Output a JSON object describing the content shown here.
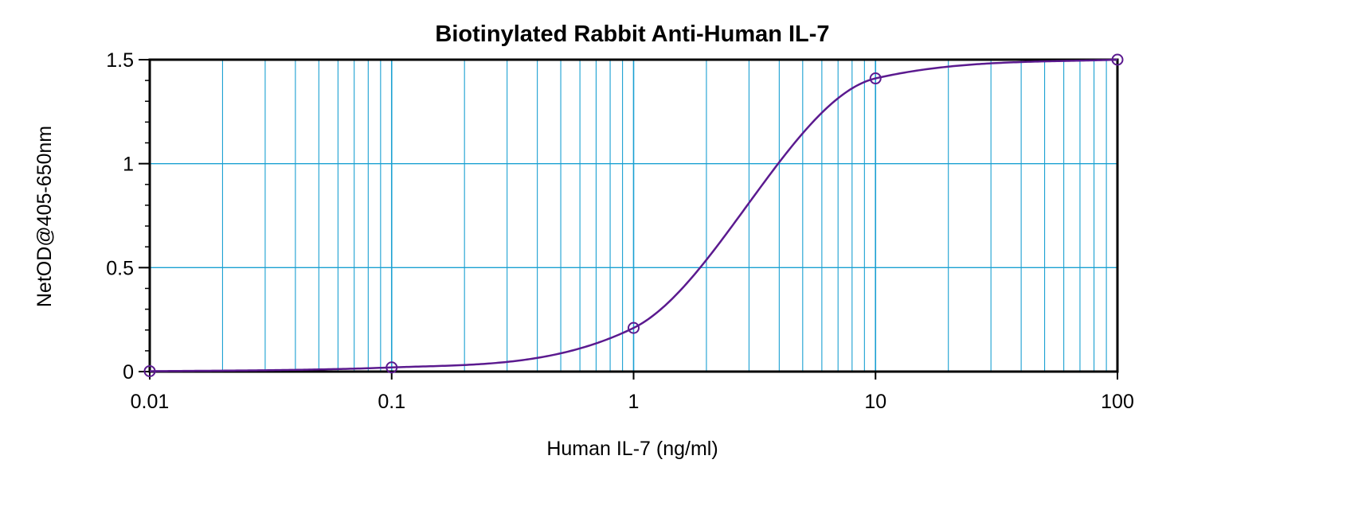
{
  "chart_data": {
    "type": "scatter",
    "title": "Biotinylated Rabbit Anti-Human IL-7",
    "xlabel": "Human IL-7 (ng/ml)",
    "ylabel": "NetOD@405-650nm",
    "x_scale": "log",
    "xlim": [
      0.01,
      100
    ],
    "ylim": [
      0,
      1.5
    ],
    "x_ticks": [
      0.01,
      0.1,
      1,
      10,
      100
    ],
    "x_tick_labels": [
      "0.01",
      "0.1",
      "1",
      "10",
      "100"
    ],
    "y_ticks": [
      0,
      0.5,
      1,
      1.5
    ],
    "y_tick_labels": [
      "0",
      "0.5",
      "1",
      "1.5"
    ],
    "grid": true,
    "legend": "none",
    "series": [
      {
        "x": [
          0.01,
          0.1,
          1,
          10,
          100
        ],
        "y": [
          0.002,
          0.02,
          0.21,
          1.41,
          1.5
        ],
        "marker": "open-circle",
        "fit": "4-parameter logistic",
        "color": "#5b1a8f"
      }
    ],
    "colors": {
      "grid": "#1aa0d2",
      "curve": "#5b1a8f",
      "axes": "#000000"
    }
  }
}
